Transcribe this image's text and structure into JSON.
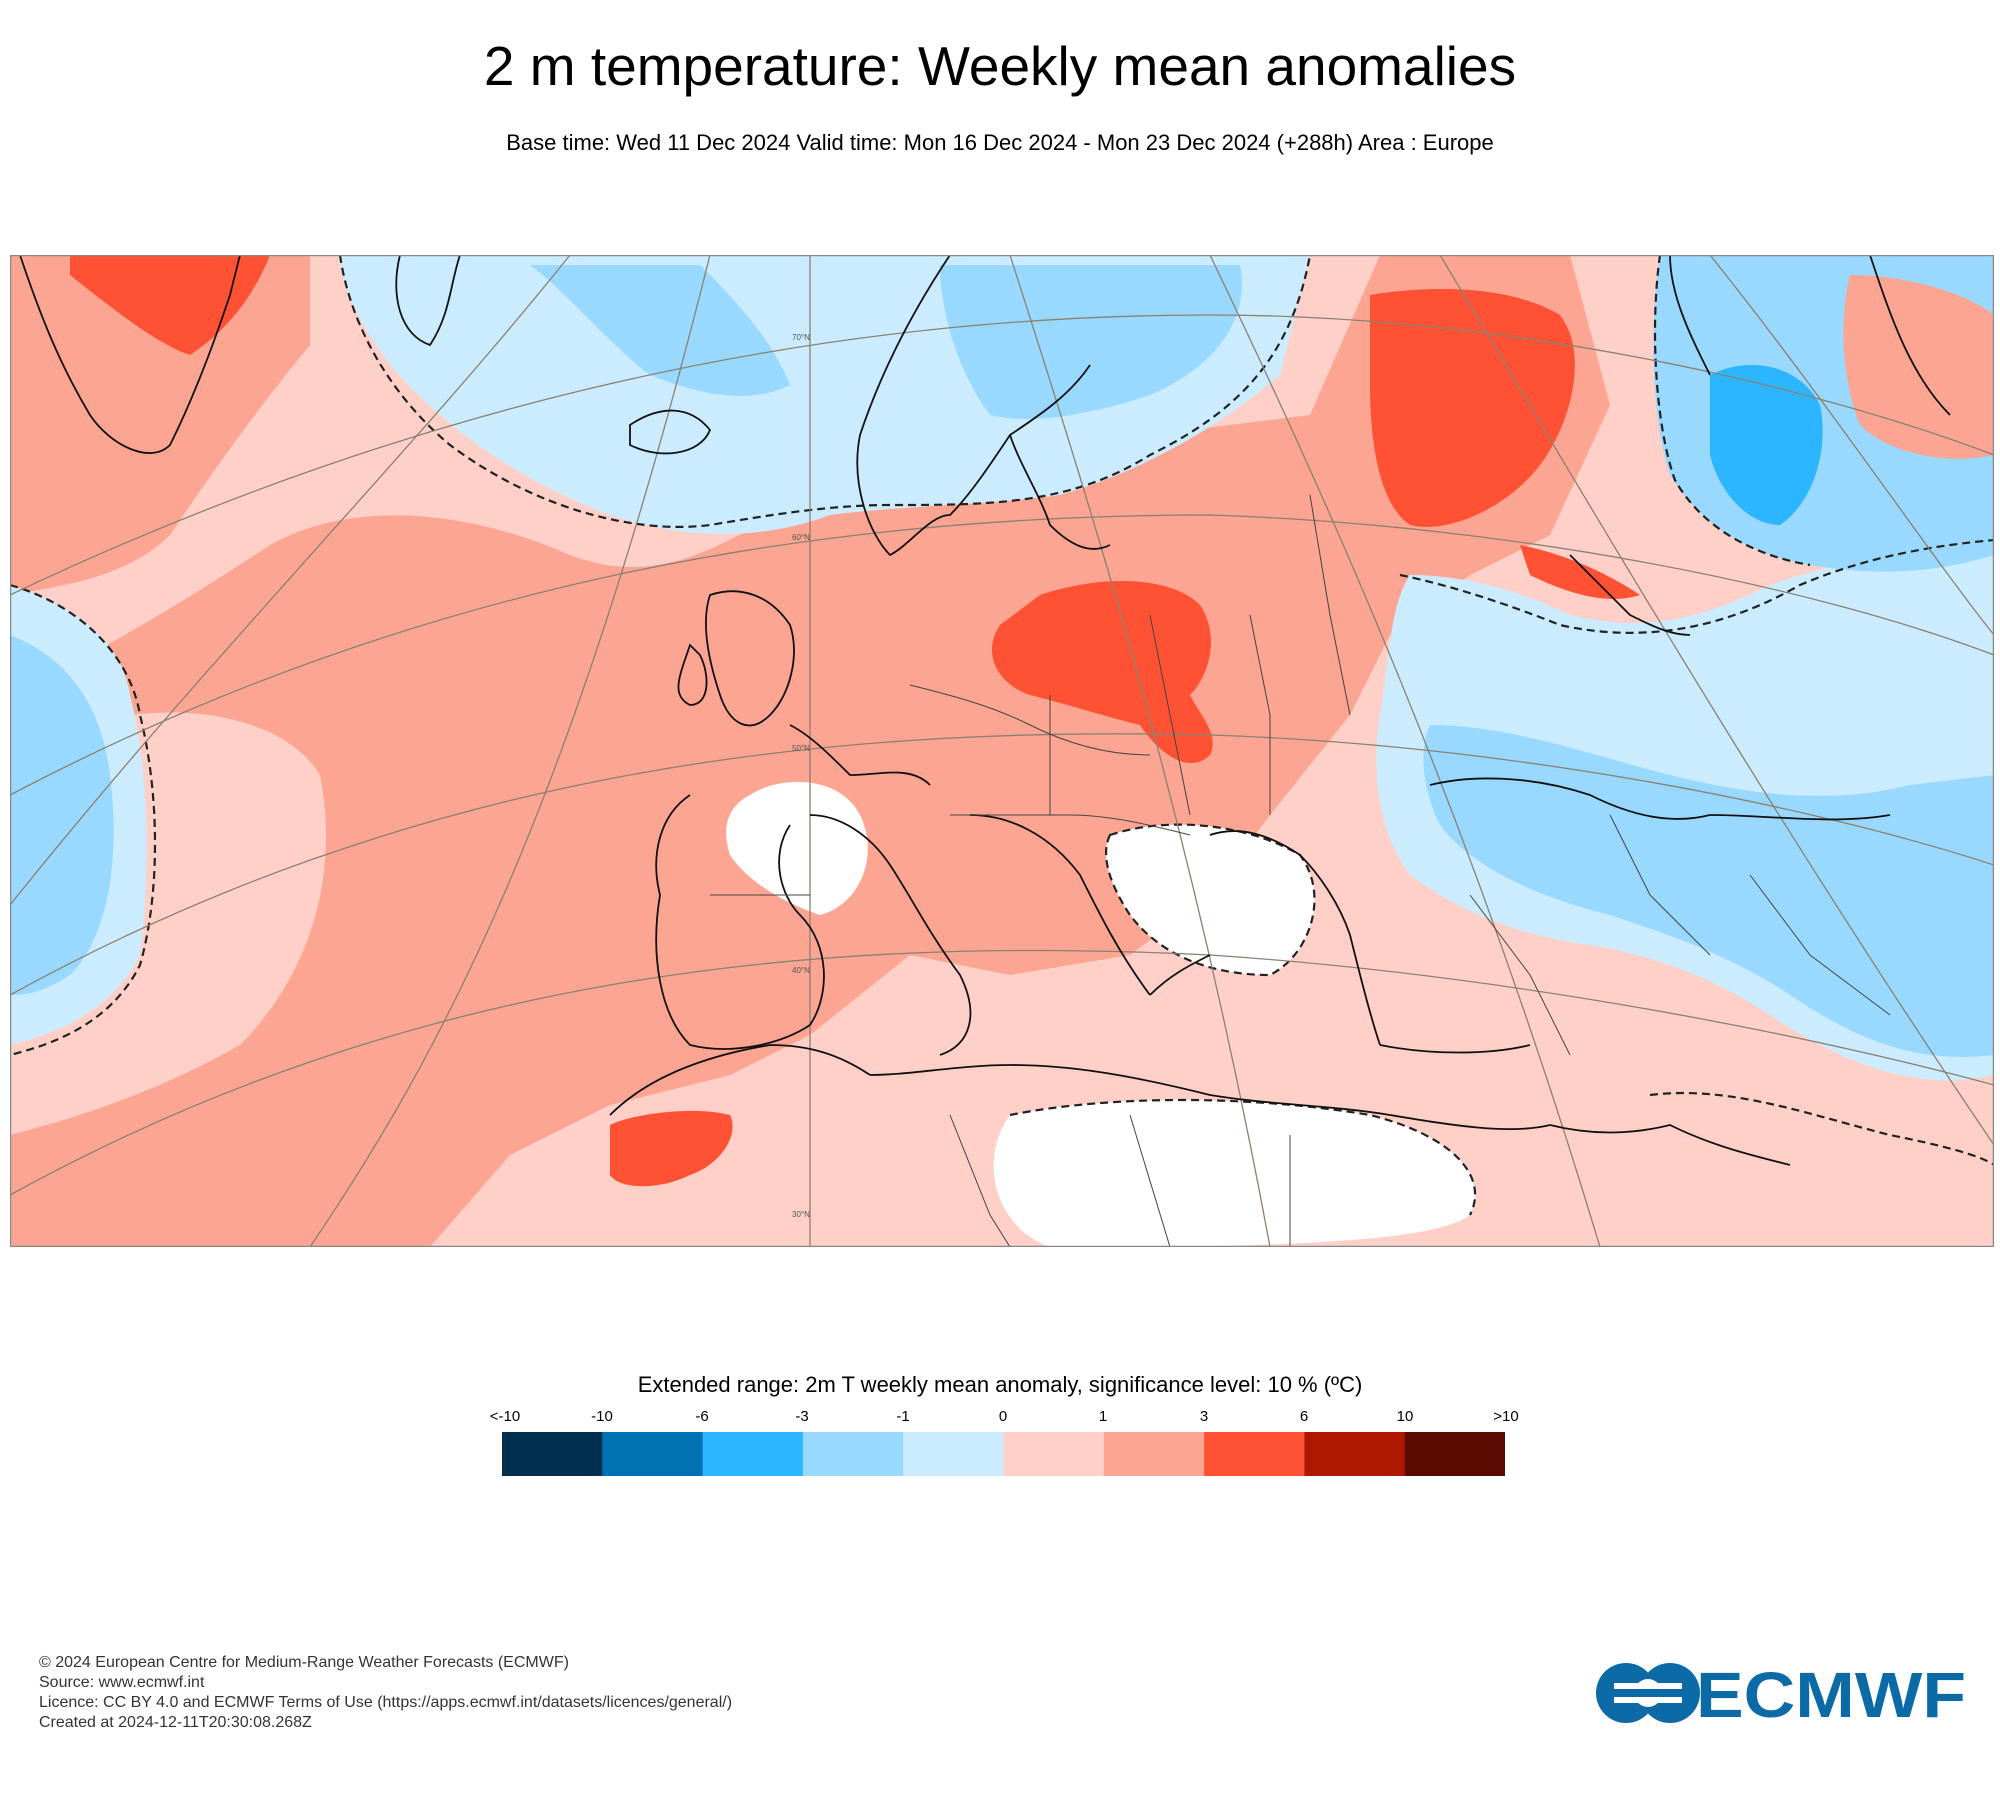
{
  "header": {
    "title": "2 m temperature: Weekly mean anomalies",
    "subtitle": "Base time: Wed 11 Dec 2024 Valid time: Mon 16 Dec 2024 - Mon 23 Dec 2024 (+288h) Area : Europe"
  },
  "map": {
    "area": "Europe",
    "graticule_labels": [
      "70°N",
      "60°N",
      "50°N",
      "40°N",
      "30°N"
    ]
  },
  "legend": {
    "title": "Extended range: 2m T weekly mean anomaly, significance level: 10 % (ºC)",
    "labels": [
      "<-10",
      "-10",
      "-6",
      "-3",
      "-1",
      "0",
      "1",
      "3",
      "6",
      "10",
      ">10"
    ],
    "bins": [
      {
        "range": "<-10 to -10",
        "color": "#00304f"
      },
      {
        "range": "-10 to -6",
        "color": "#0072b2"
      },
      {
        "range": "-6 to -3",
        "color": "#2cb6ff"
      },
      {
        "range": "-3 to -1",
        "color": "#99d8ff"
      },
      {
        "range": "-1 to 0",
        "color": "#cbecff"
      },
      {
        "range": "0 to 1",
        "color": "#ffd0c8"
      },
      {
        "range": "1 to 3",
        "color": "#fca592"
      },
      {
        "range": "3 to 6",
        "color": "#ff5234"
      },
      {
        "range": "6 to 10",
        "color": "#af1800"
      },
      {
        "range": "10 to >10",
        "color": "#5b0a00"
      }
    ]
  },
  "footer": {
    "copyright": "© 2024 European Centre for Medium-Range Weather Forecasts (ECMWF)",
    "source": "Source: www.ecmwf.int",
    "licence": "Licence: CC BY 4.0 and ECMWF Terms of Use (https://apps.ecmwf.int/datasets/licences/general/)",
    "created": "Created at 2024-12-11T20:30:08.268Z"
  },
  "logo": {
    "text": "ECMWF",
    "color": "#0c6aa6"
  }
}
